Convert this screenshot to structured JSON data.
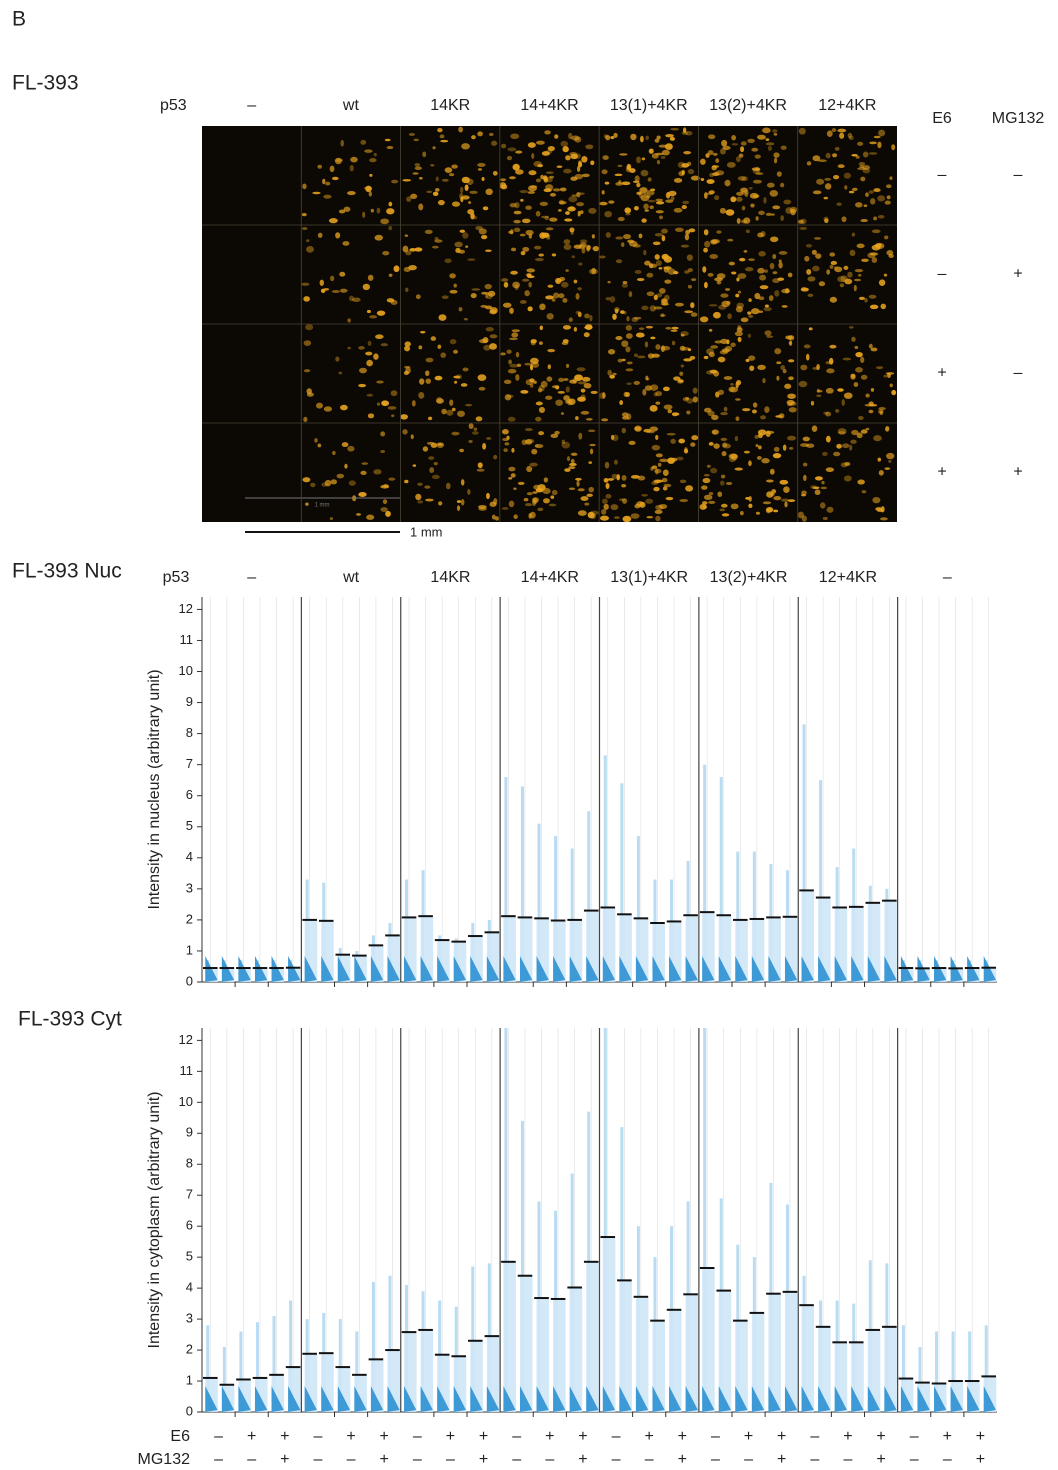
{
  "panel_label": "B",
  "image_panel": {
    "title": "FL-393",
    "row_header": "p53",
    "columns": [
      "–",
      "wt",
      "14KR",
      "14+4KR",
      "13(1)+4KR",
      "13(2)+4KR",
      "12+4KR"
    ],
    "condition_headers": [
      "E6",
      "MG132"
    ],
    "conditions": [
      [
        "–",
        "–"
      ],
      [
        "–",
        "+"
      ],
      [
        "+",
        "–"
      ],
      [
        "+",
        "+"
      ]
    ],
    "inner_scale_label": "1 mm",
    "scale_bar": "1 mm"
  },
  "chart_data": [
    {
      "type": "strip",
      "title": "FL-393 Nuc",
      "group_header": "p53",
      "ylabel": "Intensity in nucleus (arbitrary unit)",
      "ylim": [
        0,
        12.4
      ],
      "yticks": [
        0,
        1,
        2,
        3,
        4,
        5,
        6,
        7,
        8,
        9,
        10,
        11,
        12
      ],
      "groups": [
        {
          "label": "–",
          "means": [
            0.45,
            0.45,
            0.45,
            0.45,
            0.45,
            0.46
          ],
          "maxima": [
            0.7,
            0.7,
            0.7,
            0.7,
            0.7,
            0.7
          ]
        },
        {
          "label": "wt",
          "means": [
            2.0,
            1.97,
            0.88,
            0.85,
            1.18,
            1.5
          ],
          "maxima": [
            3.3,
            3.2,
            1.1,
            1.0,
            1.5,
            1.9
          ]
        },
        {
          "label": "14KR",
          "means": [
            2.08,
            2.12,
            1.35,
            1.3,
            1.48,
            1.6
          ],
          "maxima": [
            3.3,
            3.6,
            1.5,
            1.4,
            1.9,
            2.0
          ]
        },
        {
          "label": "14+4KR",
          "means": [
            2.12,
            2.08,
            2.05,
            1.98,
            2.0,
            2.3
          ],
          "maxima": [
            6.6,
            6.3,
            5.1,
            4.7,
            4.3,
            5.5
          ]
        },
        {
          "label": "13(1)+4KR",
          "means": [
            2.4,
            2.18,
            2.05,
            1.9,
            1.95,
            2.15
          ],
          "maxima": [
            7.3,
            6.4,
            4.7,
            3.3,
            3.3,
            3.9
          ]
        },
        {
          "label": "13(2)+4KR",
          "means": [
            2.25,
            2.15,
            2.0,
            2.03,
            2.08,
            2.1
          ],
          "maxima": [
            7.0,
            6.6,
            4.2,
            4.2,
            3.8,
            3.6
          ]
        },
        {
          "label": "12+4KR",
          "means": [
            2.95,
            2.72,
            2.4,
            2.42,
            2.55,
            2.62
          ],
          "maxima": [
            8.3,
            6.5,
            3.7,
            4.3,
            3.1,
            3.0
          ]
        },
        {
          "label": "–",
          "means": [
            0.45,
            0.44,
            0.45,
            0.44,
            0.45,
            0.46
          ],
          "maxima": [
            0.7,
            0.7,
            0.7,
            0.7,
            0.7,
            0.7
          ]
        }
      ]
    },
    {
      "type": "strip",
      "title": "FL-393 Cyt",
      "ylabel": "Intensity in cytoplasm (arbitrary unit)",
      "ylim": [
        0,
        12.4
      ],
      "yticks": [
        0,
        1,
        2,
        3,
        4,
        5,
        6,
        7,
        8,
        9,
        10,
        11,
        12
      ],
      "groups": [
        {
          "means": [
            1.1,
            0.88,
            1.05,
            1.1,
            1.2,
            1.45
          ],
          "maxima": [
            2.8,
            2.1,
            2.6,
            2.9,
            3.1,
            3.6
          ]
        },
        {
          "means": [
            1.88,
            1.9,
            1.45,
            1.2,
            1.7,
            2.0
          ],
          "maxima": [
            3.0,
            3.2,
            3.0,
            2.6,
            4.2,
            4.4
          ]
        },
        {
          "means": [
            2.58,
            2.65,
            1.85,
            1.8,
            2.3,
            2.45
          ],
          "maxima": [
            4.1,
            3.9,
            3.6,
            3.4,
            4.7,
            4.8
          ]
        },
        {
          "means": [
            4.85,
            4.4,
            3.68,
            3.65,
            4.02,
            4.85
          ],
          "maxima": [
            12.4,
            9.4,
            6.8,
            6.5,
            7.7,
            9.7
          ]
        },
        {
          "means": [
            5.65,
            4.25,
            3.72,
            2.95,
            3.3,
            3.8
          ],
          "maxima": [
            12.4,
            9.2,
            6.0,
            5.0,
            6.0,
            6.8
          ]
        },
        {
          "means": [
            4.65,
            3.92,
            2.95,
            3.2,
            3.82,
            3.88
          ],
          "maxima": [
            12.4,
            6.9,
            5.4,
            5.0,
            7.4,
            6.7
          ]
        },
        {
          "means": [
            3.45,
            2.75,
            2.25,
            2.25,
            2.65,
            2.75
          ],
          "maxima": [
            4.4,
            3.6,
            3.6,
            3.5,
            4.9,
            4.8
          ]
        },
        {
          "means": [
            1.08,
            0.95,
            0.92,
            1.0,
            1.0,
            1.15
          ],
          "maxima": [
            2.8,
            2.1,
            2.6,
            2.6,
            2.6,
            2.8
          ]
        }
      ]
    }
  ],
  "condition_rows": {
    "labels": [
      "E6",
      "MG132"
    ],
    "values": [
      [
        "–",
        "+",
        "+"
      ],
      [
        "–",
        "–",
        "+"
      ]
    ]
  }
}
